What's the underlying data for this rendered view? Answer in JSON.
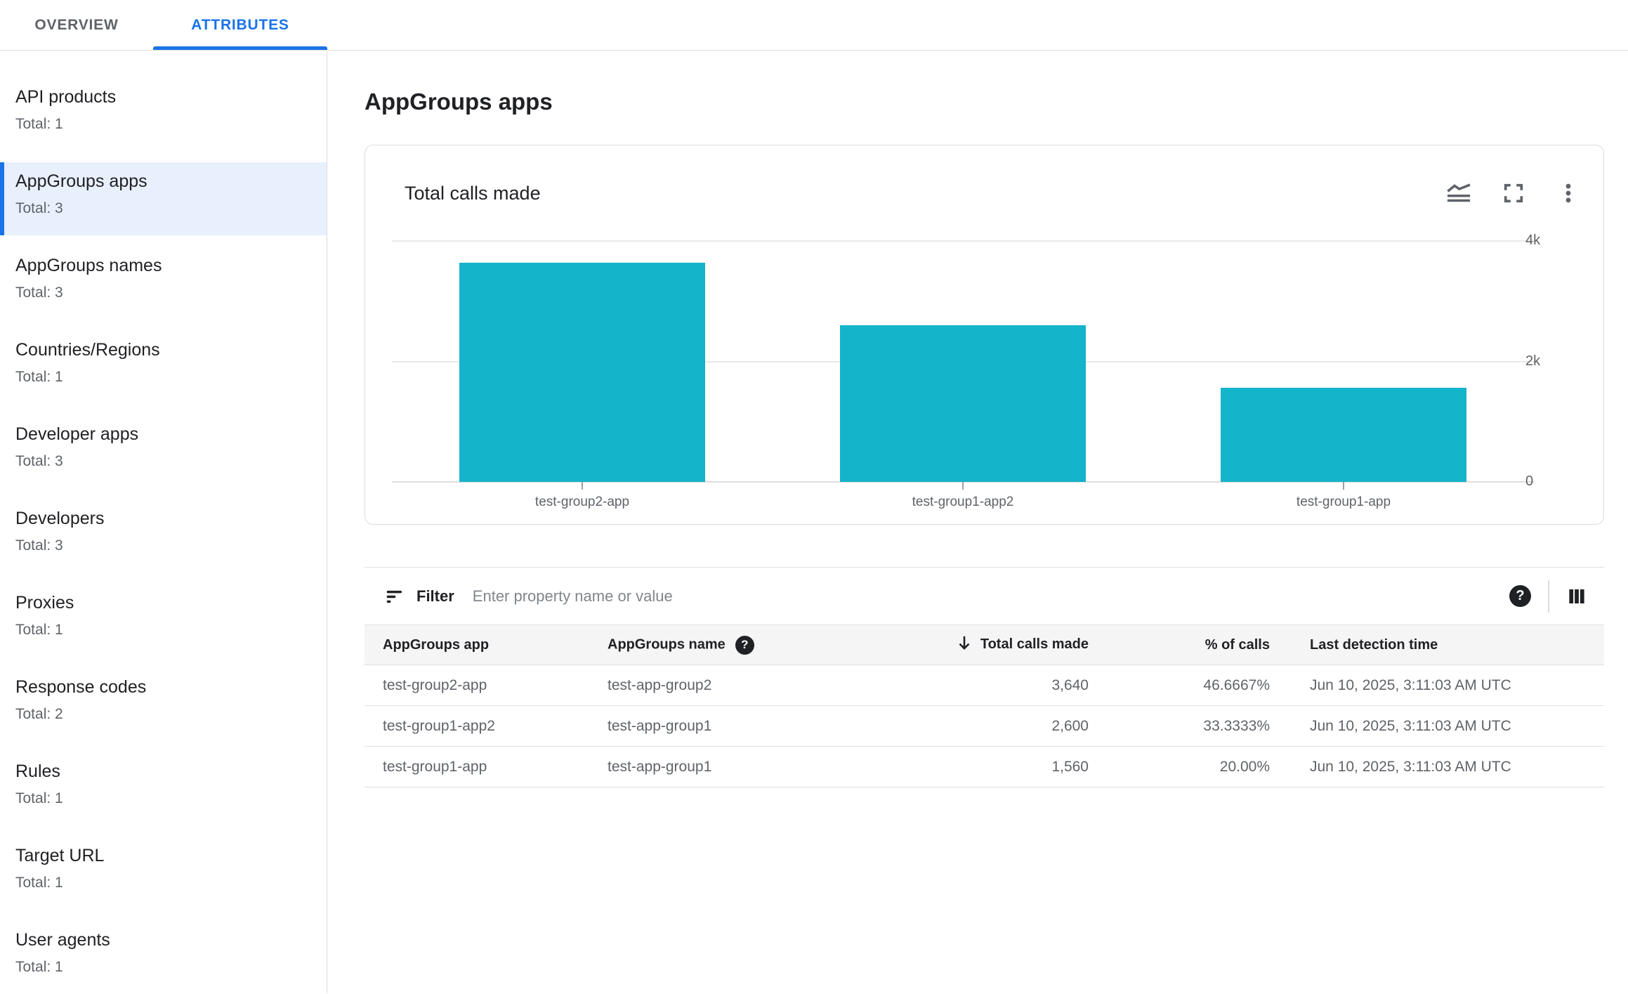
{
  "tabs": [
    {
      "label": "OVERVIEW",
      "active": false
    },
    {
      "label": "ATTRIBUTES",
      "active": true
    }
  ],
  "sidebar": {
    "items": [
      {
        "label": "API products",
        "total": "Total: 1",
        "selected": false
      },
      {
        "label": "AppGroups apps",
        "total": "Total: 3",
        "selected": true
      },
      {
        "label": "AppGroups names",
        "total": "Total: 3",
        "selected": false
      },
      {
        "label": "Countries/Regions",
        "total": "Total: 1",
        "selected": false
      },
      {
        "label": "Developer apps",
        "total": "Total: 3",
        "selected": false
      },
      {
        "label": "Developers",
        "total": "Total: 3",
        "selected": false
      },
      {
        "label": "Proxies",
        "total": "Total: 1",
        "selected": false
      },
      {
        "label": "Response codes",
        "total": "Total: 2",
        "selected": false
      },
      {
        "label": "Rules",
        "total": "Total: 1",
        "selected": false
      },
      {
        "label": "Target URL",
        "total": "Total: 1",
        "selected": false
      },
      {
        "label": "User agents",
        "total": "Total: 1",
        "selected": false
      }
    ]
  },
  "page": {
    "title": "AppGroups apps"
  },
  "card": {
    "title": "Total calls made",
    "icons": [
      "stacked-line-chart",
      "fullscreen",
      "more-vert"
    ]
  },
  "chart_data": {
    "type": "bar",
    "title": "Total calls made",
    "categories": [
      "test-group2-app",
      "test-group1-app2",
      "test-group1-app"
    ],
    "values": [
      3640,
      2600,
      1560
    ],
    "xlabel": "",
    "ylabel": "",
    "ylim": [
      0,
      4000
    ],
    "yticks": [
      {
        "value": 4000,
        "label": "4k"
      },
      {
        "value": 2000,
        "label": "2k"
      },
      {
        "value": 0,
        "label": "0"
      }
    ],
    "grid": true,
    "legend": false,
    "bar_color": "#14b4ca"
  },
  "filter": {
    "label": "Filter",
    "placeholder": "Enter property name or value"
  },
  "table": {
    "columns": [
      {
        "label": "AppGroups app",
        "align": "left"
      },
      {
        "label": "AppGroups name",
        "align": "left",
        "help_icon": true
      },
      {
        "label": "Total calls made",
        "align": "right",
        "sorted": "desc"
      },
      {
        "label": "% of calls",
        "align": "right"
      },
      {
        "label": "Last detection time",
        "align": "left"
      }
    ],
    "rows": [
      [
        "test-group2-app",
        "test-app-group2",
        "3,640",
        "46.6667%",
        "Jun 10, 2025, 3:11:03 AM UTC"
      ],
      [
        "test-group1-app2",
        "test-app-group1",
        "2,600",
        "33.3333%",
        "Jun 10, 2025, 3:11:03 AM UTC"
      ],
      [
        "test-group1-app",
        "test-app-group1",
        "1,560",
        "20.00%",
        "Jun 10, 2025, 3:11:03 AM UTC"
      ]
    ]
  },
  "colors": {
    "accent": "#1a73e8",
    "selected_item_bg": "#e8f0fe",
    "bar": "#14b4ca",
    "text_primary": "#202124",
    "text_secondary": "#5f6368",
    "divider": "#e0e0e0",
    "table_header_bg": "#f5f5f5"
  }
}
